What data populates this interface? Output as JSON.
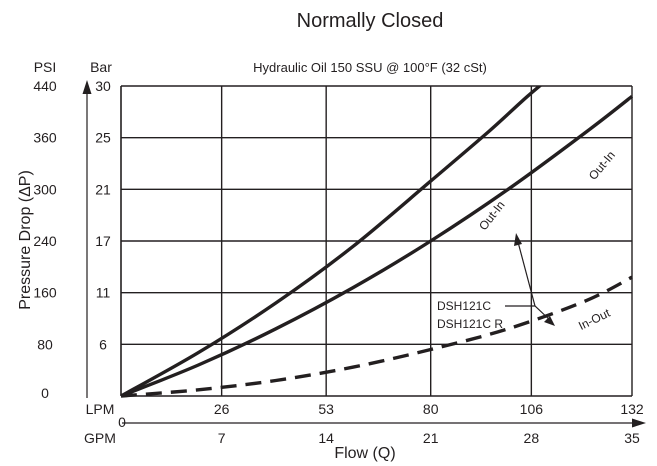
{
  "chart_data": {
    "type": "line",
    "title": "Normally Closed",
    "subtitle": "Hydraulic Oil 150  SSU  @  100°F (32 cSt)",
    "xlabel": "Flow (Q)",
    "ylabel": "Pressure   Drop (ΔP)",
    "x_units": {
      "primary": "LPM",
      "secondary": "GPM"
    },
    "y_units": {
      "primary": "PSI",
      "secondary": "Bar"
    },
    "xlim": [
      0,
      132
    ],
    "ylim": [
      0,
      30
    ],
    "grid": true,
    "x_ticks": [
      {
        "lpm": "0",
        "gpm": "",
        "value": 0
      },
      {
        "lpm": "26",
        "gpm": "7",
        "value": 26
      },
      {
        "lpm": "53",
        "gpm": "14",
        "value": 53
      },
      {
        "lpm": "80",
        "gpm": "21",
        "value": 80
      },
      {
        "lpm": "106",
        "gpm": "28",
        "value": 106
      },
      {
        "lpm": "132",
        "gpm": "35",
        "value": 132
      }
    ],
    "y_ticks": [
      {
        "psi": "0",
        "bar": "",
        "value": 0
      },
      {
        "psi": "80",
        "bar": "6",
        "value": 5
      },
      {
        "psi": "160",
        "bar": "11",
        "value": 10
      },
      {
        "psi": "240",
        "bar": "17",
        "value": 15
      },
      {
        "psi": "300",
        "bar": "21",
        "value": 20
      },
      {
        "psi": "360",
        "bar": "25",
        "value": 25
      },
      {
        "psi": "440",
        "bar": "30",
        "value": 30
      }
    ],
    "series": [
      {
        "label": "Out-In",
        "style": "solid",
        "x": [
          0,
          20,
          40,
          60,
          80,
          95,
          105,
          113
        ],
        "y": [
          0,
          4.2,
          9,
          14.5,
          20.8,
          25.6,
          29,
          31.5
        ]
      },
      {
        "label": "Out-In",
        "style": "solid",
        "x": [
          0,
          20,
          40,
          60,
          80,
          100,
          120,
          132
        ],
        "y": [
          0,
          3,
          6.5,
          10.5,
          15,
          20,
          25.5,
          29
        ]
      },
      {
        "label": "In-Out",
        "style": "dashed",
        "x": [
          0,
          20,
          40,
          60,
          80,
          100,
          120,
          132
        ],
        "y": [
          0,
          0.6,
          1.5,
          2.8,
          4.5,
          6.5,
          9.2,
          11.5
        ]
      }
    ],
    "annotations": [
      {
        "text": "DSH121C"
      },
      {
        "text": "DSH121C  R"
      }
    ],
    "line_color": "#231f20"
  }
}
